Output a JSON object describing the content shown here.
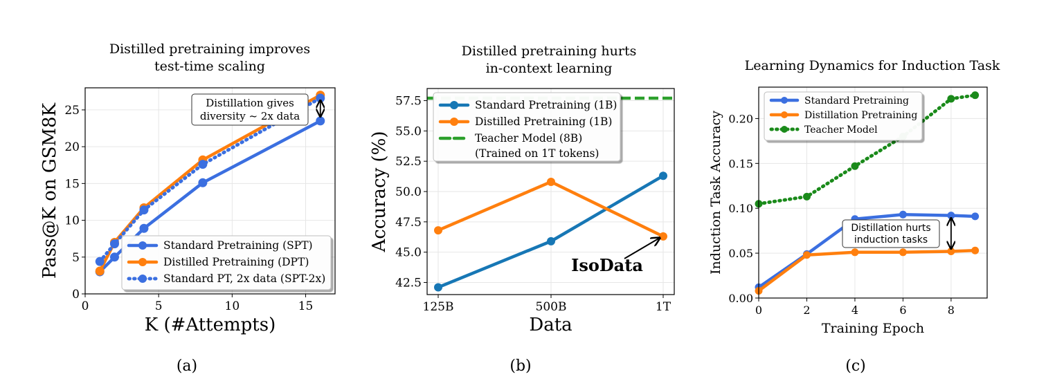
{
  "chart_data": [
    {
      "type": "line",
      "panel_label": "(a)",
      "title_lines": [
        "Distilled pretraining improves",
        "test-time scaling"
      ],
      "xlabel": "K (#Attempts)",
      "ylabel": "Pass@K on GSM8K",
      "xlim": [
        0,
        17
      ],
      "ylim": [
        0,
        28
      ],
      "xticks": [
        0,
        5,
        10,
        15
      ],
      "yticks": [
        0,
        5,
        10,
        15,
        20,
        25
      ],
      "grid": true,
      "legend_position": "lower-right",
      "series": [
        {
          "name": "Standard Pretraining (SPT)",
          "color": "#3b6fe0",
          "style": "solid",
          "x": [
            1,
            2,
            4,
            8,
            16
          ],
          "values": [
            3.0,
            5.0,
            8.9,
            15.1,
            23.5
          ]
        },
        {
          "name": "Distilled Pretraining (DPT)",
          "color": "#ff7f0e",
          "style": "solid",
          "x": [
            1,
            2,
            4,
            8,
            16
          ],
          "values": [
            3.1,
            7.0,
            11.7,
            18.2,
            27.0
          ]
        },
        {
          "name": "Standard PT, 2x data (SPT-2x)",
          "color": "#3b6fe0",
          "style": "dotted",
          "x": [
            1,
            2,
            4,
            8,
            16
          ],
          "values": [
            4.4,
            6.8,
            11.4,
            17.6,
            26.6
          ]
        }
      ],
      "annotation": {
        "lines": [
          "Distillation gives",
          "diversity ~ 2x data"
        ]
      }
    },
    {
      "type": "line",
      "panel_label": "(b)",
      "title_lines": [
        "Distilled pretraining hurts",
        "in-context learning"
      ],
      "xlabel": "Data",
      "ylabel": "Accuracy (%)",
      "categories": [
        "125B",
        "500B",
        "1T"
      ],
      "ylim": [
        41.5,
        58.5
      ],
      "yticks": [
        42.5,
        45.0,
        47.5,
        50.0,
        52.5,
        55.0,
        57.5
      ],
      "ytick_labels": [
        "42.5",
        "45.0",
        "47.5",
        "50.0",
        "52.5",
        "55.0",
        "57.5"
      ],
      "grid": true,
      "legend_position": "top-left",
      "series": [
        {
          "name": "Standard Pretraining (1B)",
          "color": "#1777b5",
          "style": "solid",
          "values": [
            42.1,
            45.9,
            51.3
          ]
        },
        {
          "name": "Distilled Pretraining (1B)",
          "color": "#ff7f0e",
          "style": "solid",
          "values": [
            46.8,
            50.8,
            46.3
          ]
        },
        {
          "name": "Teacher Model (8B)",
          "name_line2": "(Trained on 1T tokens)",
          "color": "#2ca02c",
          "style": "dashed",
          "value": 57.7
        }
      ],
      "annotation": {
        "text": "IsoData"
      }
    },
    {
      "type": "line",
      "panel_label": "(c)",
      "title_lines": [
        "Learning Dynamics for Induction Task"
      ],
      "xlabel": "Training Epoch",
      "ylabel": "Induction Task Accuracy",
      "xlim": [
        0,
        9.5
      ],
      "ylim": [
        0,
        0.235
      ],
      "xticks": [
        0,
        2,
        4,
        6,
        8
      ],
      "yticks": [
        0.0,
        0.05,
        0.1,
        0.15,
        0.2
      ],
      "ytick_labels": [
        "0.00",
        "0.05",
        "0.10",
        "0.15",
        "0.20"
      ],
      "grid": true,
      "legend_position": "top-left",
      "series": [
        {
          "name": "Standard Pretraining",
          "color": "#3b6fe0",
          "style": "solid",
          "x": [
            0,
            2,
            4,
            6,
            8,
            9
          ],
          "values": [
            0.012,
            0.049,
            0.088,
            0.093,
            0.092,
            0.091
          ]
        },
        {
          "name": "Distillation Pretraining",
          "color": "#ff7f0e",
          "style": "solid",
          "x": [
            0,
            2,
            4,
            6,
            8,
            9
          ],
          "values": [
            0.008,
            0.048,
            0.051,
            0.051,
            0.052,
            0.053
          ]
        },
        {
          "name": "Teacher Model",
          "color": "#1a8a1a",
          "style": "dotted",
          "x": [
            0,
            2,
            4,
            6,
            8,
            9
          ],
          "values": [
            0.105,
            0.113,
            0.147,
            0.18,
            0.222,
            0.226
          ]
        }
      ],
      "annotation": {
        "lines": [
          "Distillation hurts",
          "induction tasks"
        ]
      }
    }
  ]
}
